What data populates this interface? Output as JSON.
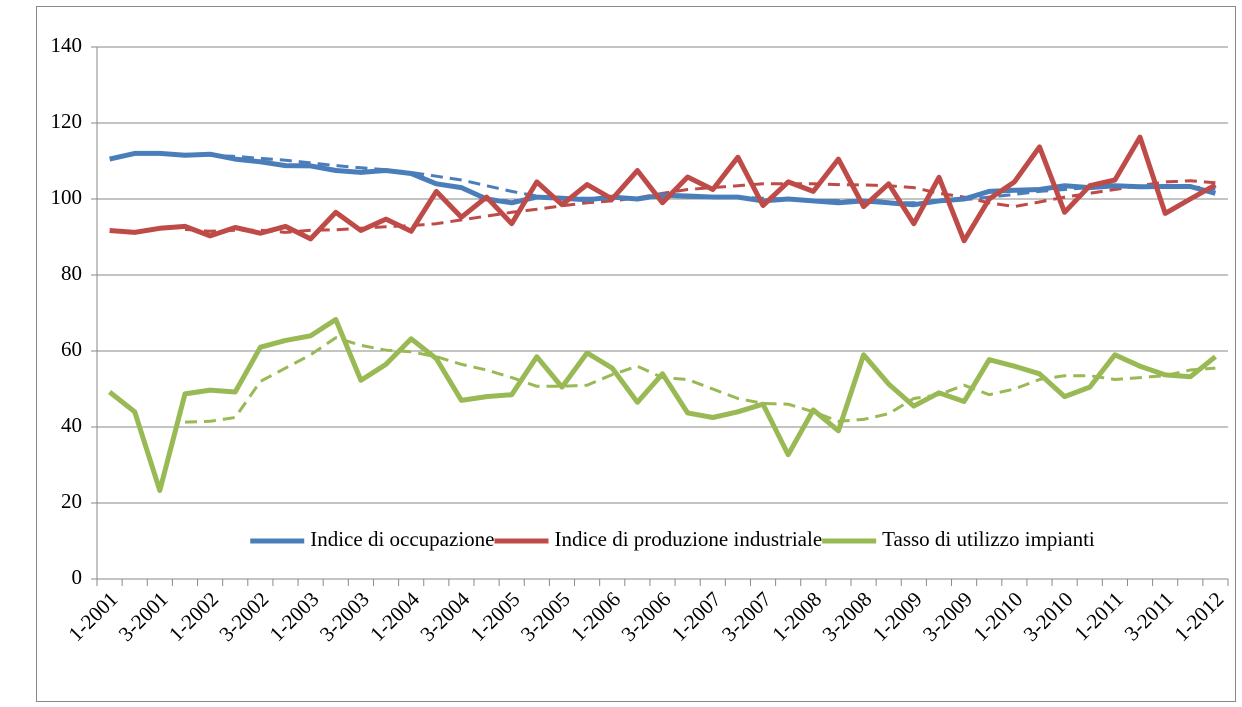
{
  "chart_data": {
    "type": "line",
    "categories": [
      "1-2001",
      null,
      "3-2001",
      null,
      "1-2002",
      null,
      "3-2002",
      null,
      "1-2003",
      null,
      "3-2003",
      null,
      "1-2004",
      null,
      "3-2004",
      null,
      "1-2005",
      null,
      "3-2005",
      null,
      "1-2006",
      null,
      "3-2006",
      null,
      "1-2007",
      null,
      "3-2007",
      null,
      "1-2008",
      null,
      "3-2008",
      null,
      "1-2009",
      null,
      "3-2009",
      null,
      "1-2010",
      null,
      "3-2010",
      null,
      "1-2011",
      null,
      "3-2011",
      null,
      "1-2012"
    ],
    "series": [
      {
        "name": "Indice di occupazione",
        "color": "#4a7ebb",
        "values": [
          110.5,
          112,
          112,
          111.5,
          111.8,
          110.5,
          109.8,
          108.8,
          108.7,
          107.5,
          107,
          107.5,
          106.7,
          104,
          103,
          100,
          99,
          100.5,
          100.2,
          99.8,
          100.5,
          100,
          101,
          100.8,
          100.5,
          100.5,
          99.5,
          100,
          99.5,
          99,
          99.5,
          99,
          98.5,
          99.5,
          100,
          102,
          102.3,
          102.5,
          103.5,
          103,
          103.5,
          103.2,
          103.3,
          103.3,
          101.5
        ]
      },
      {
        "name": "Indice di produzione industriale",
        "color": "#be4b48",
        "values": [
          91.7,
          91.2,
          92.3,
          92.8,
          90.3,
          92.5,
          91,
          92.8,
          89.5,
          96.5,
          91.7,
          94.7,
          91.5,
          102,
          95.2,
          100.5,
          93.5,
          104.5,
          98.5,
          103.8,
          100,
          107.5,
          99,
          105.8,
          102.5,
          111,
          98.3,
          104.5,
          102,
          110.5,
          98,
          104,
          93.5,
          105.7,
          89,
          100,
          104.5,
          113.7,
          96.5,
          103.5,
          105,
          116.3,
          96.2,
          100,
          103.7
        ]
      },
      {
        "name": "Tasso di utilizzo impianti",
        "color": "#98b954",
        "values": [
          49.2,
          44,
          23.3,
          48.7,
          49.7,
          49.2,
          61,
          62.8,
          64,
          68.3,
          52.3,
          56.5,
          63.2,
          58,
          47,
          48,
          48.5,
          58.5,
          50.5,
          59.5,
          55.5,
          46.5,
          54,
          43.7,
          42.5,
          44,
          46,
          32.7,
          44.5,
          39,
          59,
          51.3,
          45.5,
          49,
          46.7,
          57.7,
          56,
          54,
          48,
          50.5,
          59,
          56,
          53.7,
          53.2,
          58.5
        ]
      },
      {
        "color": "#4a7ebb",
        "dash": true,
        "values": [
          null,
          null,
          null,
          111.8,
          111.5,
          111.2,
          110.7,
          110.2,
          109.5,
          108.8,
          108.2,
          107.7,
          107,
          106,
          105,
          103.5,
          102,
          100.8,
          100.3,
          100.2,
          100.2,
          100.3,
          100.5,
          100.7,
          100.7,
          100.5,
          100.2,
          100,
          99.7,
          99.5,
          99.3,
          99,
          99,
          99.3,
          99.8,
          100.5,
          101.2,
          102,
          102.5,
          103,
          103.3,
          103.3,
          103.3,
          103.2,
          102.7
        ]
      },
      {
        "color": "#be4b48",
        "dash": true,
        "values": [
          null,
          null,
          null,
          92,
          91.5,
          91.8,
          91.8,
          91.2,
          91.8,
          91.9,
          92.3,
          92.7,
          93,
          93.5,
          94.5,
          95.5,
          96.5,
          97.3,
          98.2,
          99,
          99.5,
          100.3,
          101.5,
          102.5,
          103,
          103.5,
          104,
          104,
          104,
          103.8,
          103.7,
          103.5,
          103,
          101.5,
          100.5,
          99,
          98,
          99.2,
          100.5,
          101.5,
          102.5,
          103.5,
          104.5,
          104.8,
          104.3
        ]
      },
      {
        "color": "#98b954",
        "dash": true,
        "values": [
          null,
          null,
          null,
          41.3,
          41.5,
          42.5,
          52,
          55.5,
          59,
          63.5,
          61.5,
          60.2,
          59.8,
          58.5,
          56.5,
          55,
          53,
          50.7,
          50.7,
          51,
          53.8,
          56,
          53,
          52.5,
          50,
          47.5,
          46.2,
          46,
          44,
          41.5,
          42,
          43.5,
          47.5,
          48.5,
          51,
          48.5,
          50,
          52.5,
          53.5,
          53.5,
          52.5,
          53,
          53.5,
          55,
          55.5
        ]
      }
    ],
    "ylim": [
      0,
      140
    ],
    "yticks": [
      0,
      20,
      40,
      60,
      80,
      100,
      120,
      140
    ],
    "grid": true,
    "legend": "bottom"
  }
}
